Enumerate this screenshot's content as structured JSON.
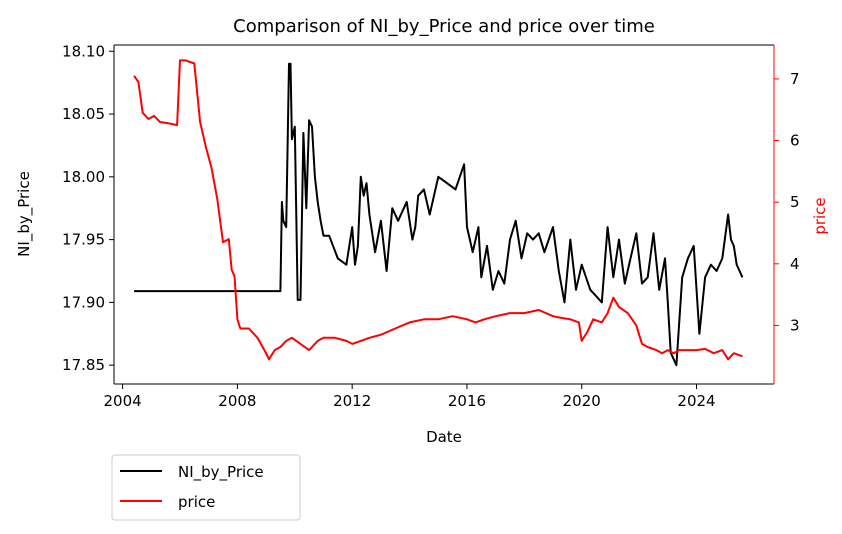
{
  "chart_data": {
    "type": "line",
    "title": "Comparison of NI_by_Price and price over time",
    "xlabel": "Date",
    "ylabel_left": "NI_by_Price",
    "ylabel_right": "price",
    "xlim": [
      2003.7,
      2026.7
    ],
    "ylim_left": [
      17.835,
      18.105
    ],
    "ylim_right": [
      2.05,
      7.55
    ],
    "x_ticks": [
      2004,
      2008,
      2012,
      2016,
      2020,
      2024
    ],
    "y_ticks_left": [
      17.85,
      17.9,
      17.95,
      18.0,
      18.05,
      18.1
    ],
    "y_ticks_right": [
      3,
      4,
      5,
      6,
      7
    ],
    "x_tick_labels": [
      "2004",
      "2008",
      "2012",
      "2016",
      "2020",
      "2024"
    ],
    "y_tick_labels_left": [
      "17.85",
      "17.90",
      "17.95",
      "18.00",
      "18.05",
      "18.10"
    ],
    "y_tick_labels_right": [
      "3",
      "4",
      "5",
      "6",
      "7"
    ],
    "grid": false,
    "legend_position": "below-left",
    "series": [
      {
        "name": "NI_by_Price",
        "axis": "left",
        "color": "#000000",
        "x": [
          2004.4,
          2009.5,
          2009.55,
          2009.6,
          2009.7,
          2009.8,
          2009.85,
          2009.9,
          2010.0,
          2010.1,
          2010.2,
          2010.3,
          2010.4,
          2010.5,
          2010.6,
          2010.7,
          2010.8,
          2010.9,
          2011.0,
          2011.2,
          2011.5,
          2011.8,
          2012.0,
          2012.1,
          2012.2,
          2012.3,
          2012.4,
          2012.5,
          2012.6,
          2012.8,
          2013.0,
          2013.2,
          2013.4,
          2013.6,
          2013.9,
          2014.1,
          2014.2,
          2014.3,
          2014.5,
          2014.7,
          2015.0,
          2015.3,
          2015.6,
          2015.9,
          2016.0,
          2016.2,
          2016.4,
          2016.5,
          2016.7,
          2016.9,
          2017.1,
          2017.3,
          2017.5,
          2017.7,
          2017.9,
          2018.1,
          2018.3,
          2018.5,
          2018.7,
          2019.0,
          2019.2,
          2019.4,
          2019.6,
          2019.8,
          2020.0,
          2020.3,
          2020.5,
          2020.7,
          2020.9,
          2021.1,
          2021.3,
          2021.5,
          2021.7,
          2021.9,
          2022.1,
          2022.3,
          2022.5,
          2022.7,
          2022.9,
          2023.0,
          2023.1,
          2023.3,
          2023.5,
          2023.7,
          2023.9,
          2024.1,
          2024.3,
          2024.5,
          2024.7,
          2024.9,
          2025.1,
          2025.2,
          2025.3,
          2025.4,
          2025.5,
          2025.6
        ],
        "values": [
          17.909,
          17.909,
          17.98,
          17.965,
          17.96,
          18.09,
          18.09,
          18.03,
          18.04,
          17.902,
          17.902,
          18.035,
          17.975,
          18.045,
          18.04,
          18.0,
          17.98,
          17.965,
          17.953,
          17.953,
          17.935,
          17.93,
          17.96,
          17.93,
          17.945,
          18.0,
          17.985,
          17.995,
          17.97,
          17.94,
          17.965,
          17.925,
          17.975,
          17.965,
          17.98,
          17.95,
          17.96,
          17.985,
          17.99,
          17.97,
          18.0,
          17.995,
          17.99,
          18.01,
          17.96,
          17.94,
          17.96,
          17.92,
          17.945,
          17.91,
          17.925,
          17.915,
          17.95,
          17.965,
          17.935,
          17.955,
          17.95,
          17.955,
          17.94,
          17.96,
          17.925,
          17.9,
          17.95,
          17.91,
          17.93,
          17.91,
          17.905,
          17.9,
          17.96,
          17.92,
          17.95,
          17.915,
          17.935,
          17.955,
          17.915,
          17.92,
          17.955,
          17.91,
          17.935,
          17.9,
          17.86,
          17.85,
          17.92,
          17.935,
          17.945,
          17.875,
          17.92,
          17.93,
          17.925,
          17.935,
          17.97,
          17.95,
          17.945,
          17.93,
          17.925,
          17.92
        ]
      },
      {
        "name": "price",
        "axis": "right",
        "color": "#ff0000",
        "x": [
          2004.4,
          2004.55,
          2004.7,
          2004.9,
          2005.1,
          2005.3,
          2005.6,
          2005.9,
          2006.0,
          2006.2,
          2006.5,
          2006.7,
          2006.9,
          2007.1,
          2007.3,
          2007.5,
          2007.7,
          2007.8,
          2007.9,
          2008.0,
          2008.1,
          2008.4,
          2008.7,
          2009.0,
          2009.1,
          2009.3,
          2009.5,
          2009.7,
          2009.9,
          2010.2,
          2010.5,
          2010.8,
          2011.0,
          2011.4,
          2011.8,
          2012.0,
          2012.3,
          2012.6,
          2013.0,
          2013.5,
          2014.0,
          2014.5,
          2015.0,
          2015.5,
          2016.0,
          2016.3,
          2016.6,
          2017.0,
          2017.5,
          2018.0,
          2018.5,
          2019.0,
          2019.3,
          2019.6,
          2019.9,
          2020.0,
          2020.2,
          2020.4,
          2020.7,
          2020.9,
          2021.1,
          2021.3,
          2021.6,
          2021.9,
          2022.1,
          2022.3,
          2022.6,
          2022.8,
          2023.0,
          2023.2,
          2023.4,
          2023.7,
          2024.0,
          2024.3,
          2024.6,
          2024.9,
          2025.1,
          2025.3,
          2025.6
        ],
        "values": [
          7.05,
          6.95,
          6.45,
          6.35,
          6.4,
          6.3,
          6.28,
          6.25,
          7.3,
          7.3,
          7.25,
          6.3,
          5.9,
          5.55,
          5.05,
          4.35,
          4.4,
          3.9,
          3.8,
          3.1,
          2.95,
          2.95,
          2.8,
          2.55,
          2.45,
          2.6,
          2.65,
          2.75,
          2.8,
          2.7,
          2.6,
          2.75,
          2.8,
          2.8,
          2.75,
          2.7,
          2.75,
          2.8,
          2.85,
          2.95,
          3.05,
          3.1,
          3.1,
          3.15,
          3.1,
          3.05,
          3.1,
          3.15,
          3.2,
          3.2,
          3.25,
          3.15,
          3.12,
          3.1,
          3.05,
          2.75,
          2.9,
          3.1,
          3.05,
          3.2,
          3.45,
          3.3,
          3.2,
          3.0,
          2.7,
          2.65,
          2.6,
          2.55,
          2.6,
          2.55,
          2.6,
          2.6,
          2.6,
          2.62,
          2.55,
          2.6,
          2.45,
          2.55,
          2.5
        ]
      }
    ]
  }
}
